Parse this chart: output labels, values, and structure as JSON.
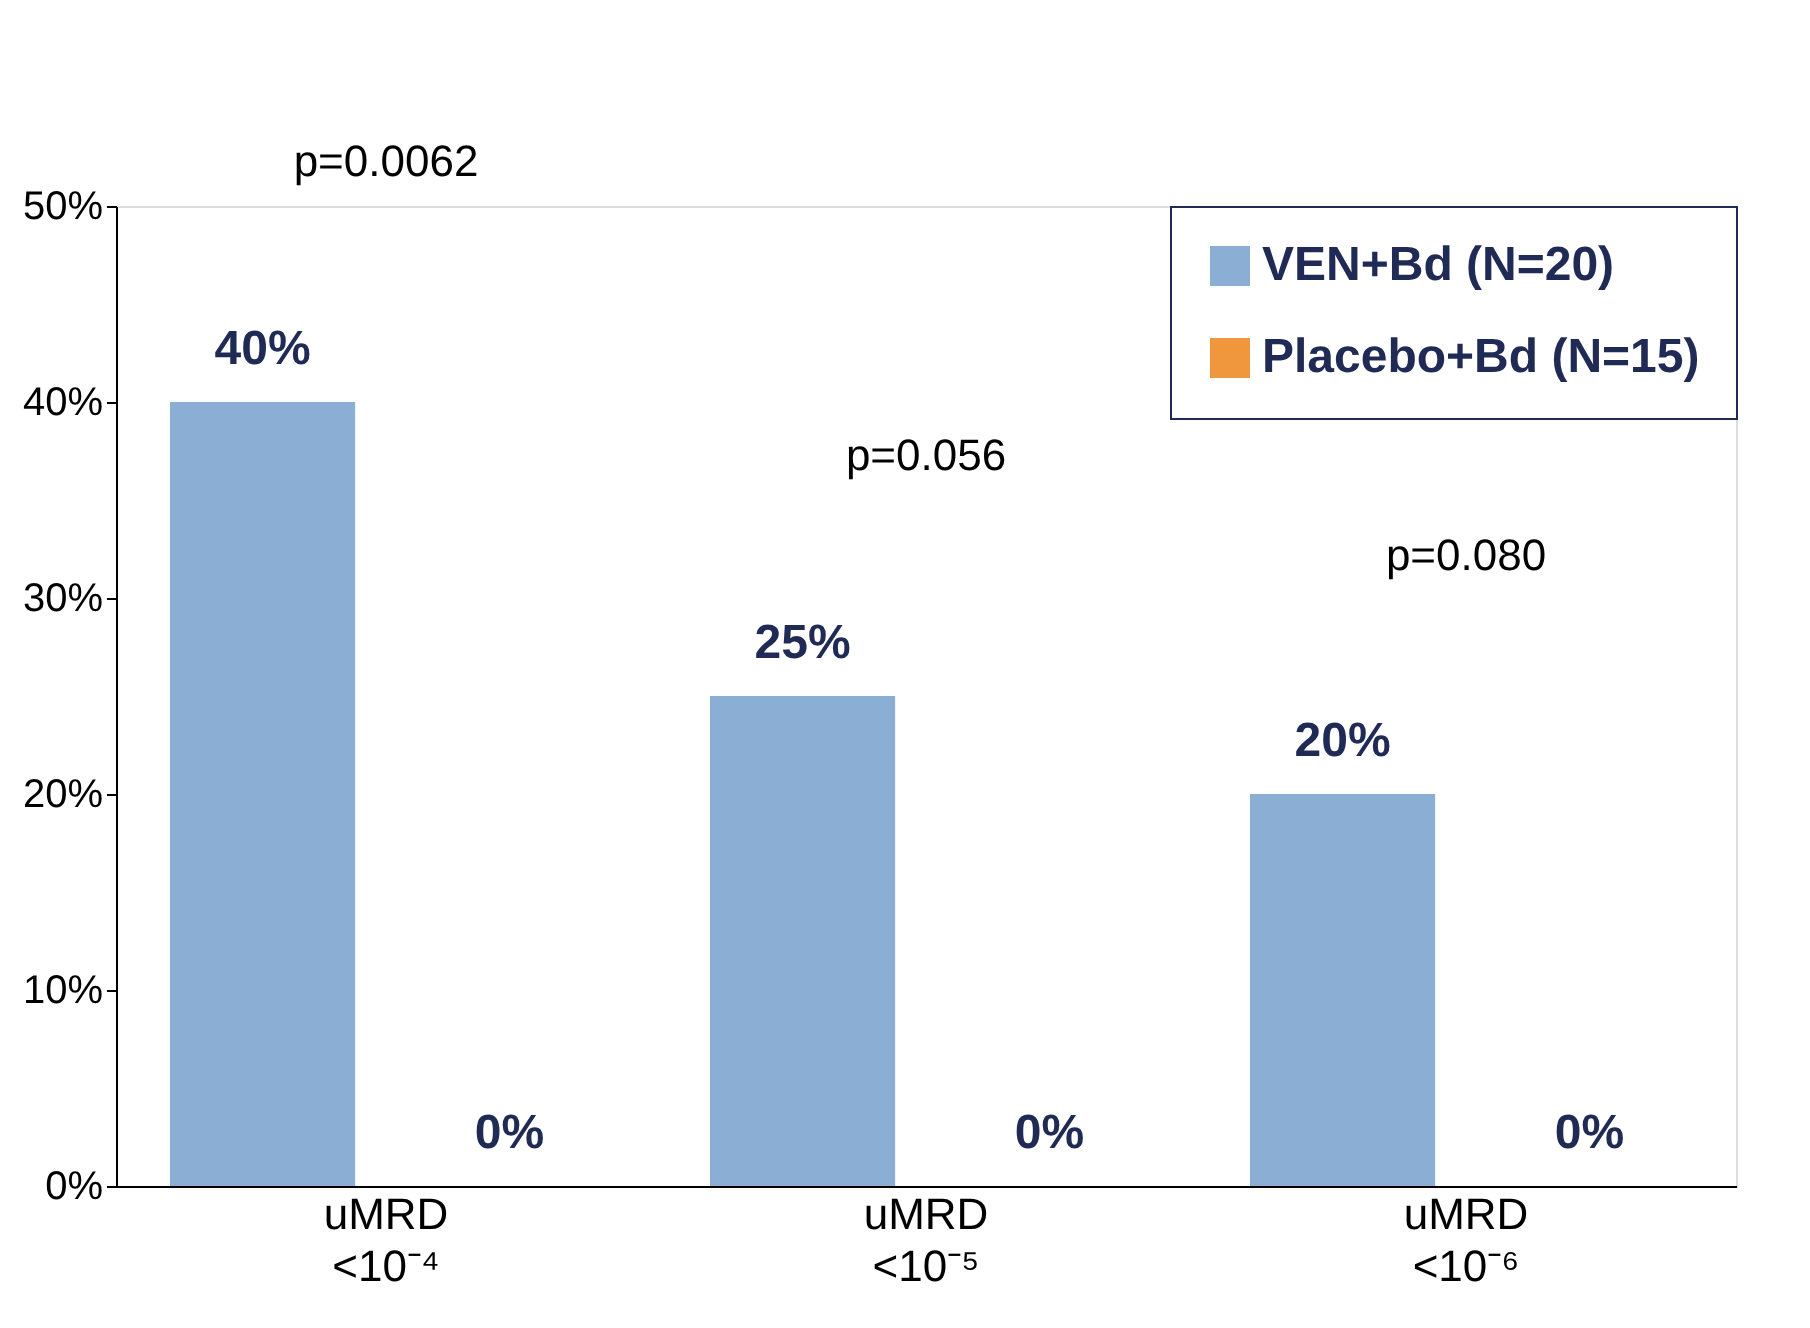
{
  "chart_data": {
    "type": "bar",
    "categories": [
      "uMRD\n<10⁻⁴",
      "uMRD\n<10⁻⁵",
      "uMRD\n<10⁻⁶"
    ],
    "series": [
      {
        "name": "VEN+Bd (N=20)",
        "color": "#8aaed4",
        "values": [
          40,
          25,
          20
        ]
      },
      {
        "name": "Placebo+Bd (N=15)",
        "color": "#f0963c",
        "values": [
          0,
          0,
          0
        ]
      }
    ],
    "ylim": [
      0,
      50
    ],
    "yticks": [
      {
        "value": 0,
        "label": "0%"
      },
      {
        "value": 10,
        "label": "10%"
      },
      {
        "value": 20,
        "label": "20%"
      },
      {
        "value": 30,
        "label": "30%"
      },
      {
        "value": 40,
        "label": "40%"
      },
      {
        "value": 50,
        "label": "50%"
      }
    ],
    "value_labels": [
      [
        "40%",
        "25%",
        "20%"
      ],
      [
        "0%",
        "0%",
        "0%"
      ]
    ],
    "annotations": [
      "p=0.0062",
      "p=0.056",
      "p=0.080"
    ],
    "grid": false,
    "legend": "top right"
  }
}
